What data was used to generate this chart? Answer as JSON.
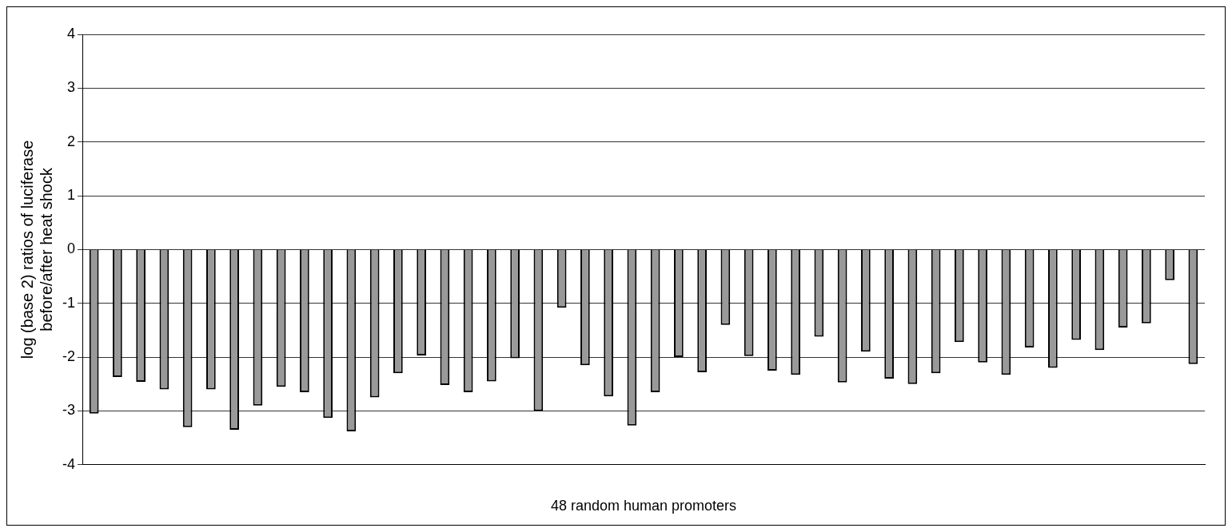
{
  "chart_data": {
    "type": "bar",
    "xlabel": "48 random human promoters",
    "ylabel": "log (base 2) ratios of luciferase before/after heat shock",
    "categories": [
      null,
      null,
      null,
      null,
      null,
      null,
      null,
      null,
      null,
      null,
      null,
      null,
      null,
      null,
      null,
      null,
      null,
      null,
      null,
      null,
      null,
      null,
      null,
      null,
      null,
      null,
      null,
      null,
      null,
      null,
      null,
      null,
      null,
      null,
      null,
      null,
      null,
      null,
      null,
      null,
      null,
      null,
      null,
      null,
      null,
      null,
      null,
      null
    ],
    "values": [
      -3.05,
      -2.37,
      -2.46,
      -2.6,
      -3.3,
      -2.6,
      -3.35,
      -2.9,
      -2.55,
      -2.65,
      -3.13,
      -3.38,
      -2.75,
      -2.3,
      -1.97,
      -2.52,
      -2.65,
      -2.45,
      -2.02,
      -3.0,
      -1.08,
      -2.15,
      -2.73,
      -3.27,
      -2.65,
      -2.0,
      -2.28,
      -1.4,
      -1.98,
      -2.25,
      -2.33,
      -1.62,
      -2.47,
      -1.9,
      -2.4,
      -2.5,
      -2.3,
      -1.72,
      -2.1,
      -2.33,
      -1.82,
      -2.2,
      -1.68,
      -1.87,
      -1.45,
      -1.37,
      -0.57,
      -2.13
    ],
    "color": "#999999",
    "ylim": [
      -4,
      4
    ],
    "yticks": [
      -4,
      -3,
      -2,
      -1,
      0,
      1,
      2,
      3,
      4
    ],
    "grid": "y",
    "legend": false
  }
}
